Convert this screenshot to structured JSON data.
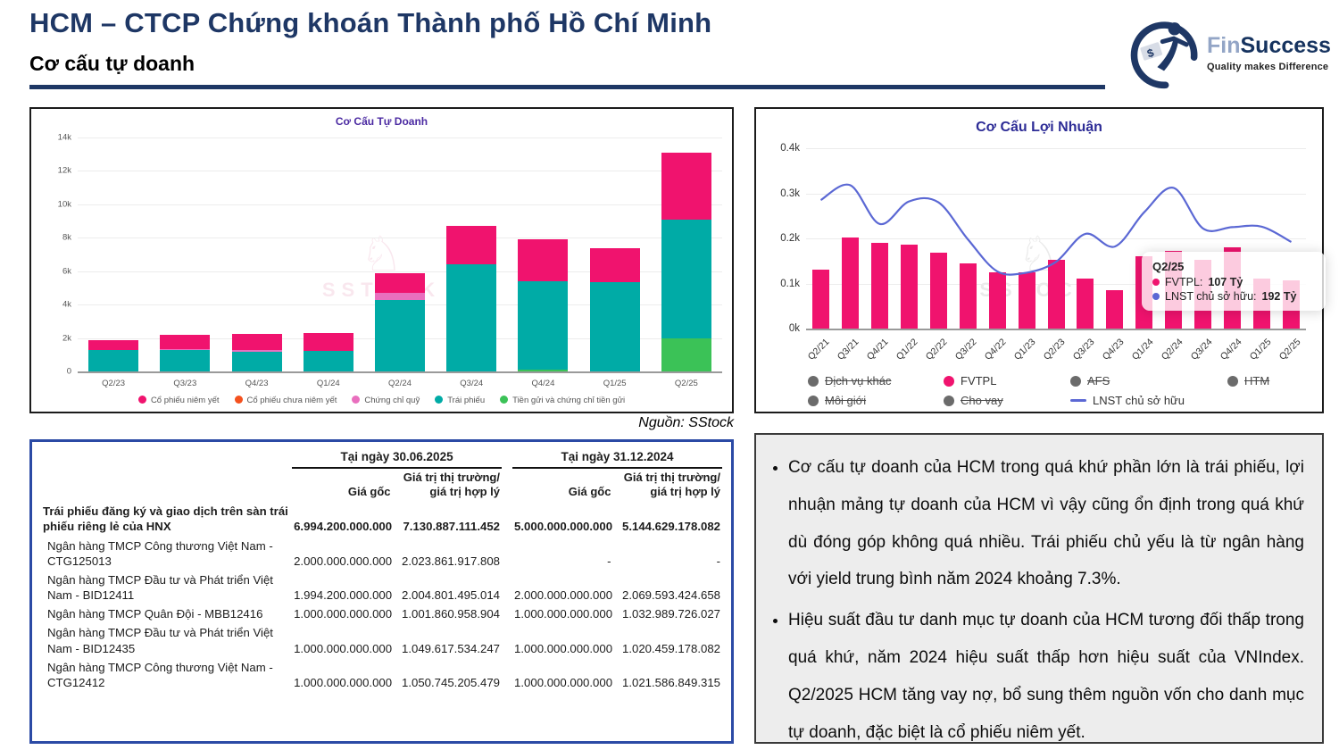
{
  "header": {
    "title": "HCM – CTCP Chứng khoán Thành phố Hồ Chí Minh",
    "subtitle": "Cơ cấu tự doanh"
  },
  "logo": {
    "name_light": "Fin",
    "name_dark": "Success",
    "tagline": "Quality makes Difference"
  },
  "source_caption": "Nguồn: SStock",
  "watermark_text": "SSTOCK",
  "colors": {
    "accent_navy": "#1E3765",
    "listed_pink": "#F0136E",
    "unlisted_orange": "#F4511E",
    "fund_pink": "#E96FBE",
    "bond_teal": "#00ABA6",
    "deposit_green": "#3BC257",
    "line_blue": "#5B68D4",
    "disabled_gray": "#6B6B6B"
  },
  "chart_data": [
    {
      "type": "bar",
      "stacked": true,
      "title": "Cơ Cấu Tự Doanh",
      "categories": [
        "Q2/23",
        "Q3/23",
        "Q4/23",
        "Q1/24",
        "Q2/24",
        "Q3/24",
        "Q4/24",
        "Q1/25",
        "Q2/25"
      ],
      "ylim": [
        0,
        14000
      ],
      "yticks": [
        {
          "v": 0,
          "label": "0"
        },
        {
          "v": 2000,
          "label": "2k"
        },
        {
          "v": 4000,
          "label": "4k"
        },
        {
          "v": 6000,
          "label": "6k"
        },
        {
          "v": 8000,
          "label": "8k"
        },
        {
          "v": 10000,
          "label": "10k"
        },
        {
          "v": 12000,
          "label": "12k"
        },
        {
          "v": 14000,
          "label": "14k"
        }
      ],
      "series": [
        {
          "name": "Tiền gửi và chứng chỉ tiền gửi",
          "color_key": "deposit_green",
          "values": [
            0,
            0,
            0,
            0,
            0,
            0,
            100,
            0,
            2000
          ]
        },
        {
          "name": "Trái phiếu",
          "color_key": "bond_teal",
          "values": [
            1300,
            1300,
            1200,
            1250,
            4300,
            6400,
            5300,
            5350,
            7100
          ]
        },
        {
          "name": "Chứng chỉ quỹ",
          "color_key": "fund_pink",
          "values": [
            0,
            60,
            100,
            0,
            380,
            0,
            0,
            0,
            0
          ]
        },
        {
          "name": "Cổ phiếu chưa niêm yết",
          "color_key": "unlisted_orange",
          "values": [
            0,
            0,
            0,
            0,
            0,
            0,
            0,
            0,
            0
          ]
        },
        {
          "name": "Cổ phiếu niêm yết",
          "color_key": "listed_pink",
          "values": [
            550,
            840,
            950,
            1050,
            1220,
            2300,
            2500,
            2050,
            4000
          ]
        }
      ],
      "legend": [
        {
          "label": "Cổ phiếu niêm yết",
          "color_key": "listed_pink"
        },
        {
          "label": "Cổ phiếu chưa niêm yết",
          "color_key": "unlisted_orange"
        },
        {
          "label": "Chứng chỉ quỹ",
          "color_key": "fund_pink"
        },
        {
          "label": "Trái phiếu",
          "color_key": "bond_teal"
        },
        {
          "label": "Tiền gửi và chứng chỉ tiền gửi",
          "color_key": "deposit_green"
        }
      ]
    },
    {
      "type": "bar+line",
      "title": "Cơ Cấu Lợi Nhuận",
      "categories": [
        "Q2/21",
        "Q3/21",
        "Q4/21",
        "Q1/22",
        "Q2/22",
        "Q3/22",
        "Q4/22",
        "Q1/23",
        "Q2/23",
        "Q3/23",
        "Q4/23",
        "Q1/24",
        "Q2/24",
        "Q3/24",
        "Q4/24",
        "Q1/25",
        "Q2/25"
      ],
      "ylim": [
        0,
        400
      ],
      "yticks": [
        {
          "v": 0,
          "label": "0k"
        },
        {
          "v": 100,
          "label": "0.1k"
        },
        {
          "v": 200,
          "label": "0.2k"
        },
        {
          "v": 300,
          "label": "0.3k"
        },
        {
          "v": 400,
          "label": "0.4k"
        }
      ],
      "bar_series": {
        "name": "FVTPL",
        "color_key": "listed_pink",
        "values": [
          130,
          202,
          190,
          187,
          168,
          145,
          125,
          124,
          153,
          110,
          85,
          160,
          172,
          152,
          180,
          110,
          107
        ]
      },
      "line_series": {
        "name": "LNST chủ sở hữu",
        "color_key": "line_blue",
        "values": [
          285,
          318,
          232,
          282,
          280,
          198,
          127,
          124,
          148,
          210,
          182,
          258,
          312,
          222,
          225,
          226,
          192
        ]
      },
      "tooltip": {
        "title": "Q2/25",
        "items": [
          {
            "label": "FVTPL",
            "value": "107 Tỷ",
            "color_key": "listed_pink"
          },
          {
            "label": "LNST chủ sở hữu",
            "value": "192 Tỷ",
            "color_key": "line_blue"
          }
        ]
      },
      "legend": [
        {
          "label": "Dịch vụ khác",
          "disabled": true,
          "marker": "dot"
        },
        {
          "label": "FVTPL",
          "disabled": false,
          "marker": "dot",
          "color_key": "listed_pink"
        },
        {
          "label": "AFS",
          "disabled": true,
          "marker": "dot"
        },
        {
          "label": "HTM",
          "disabled": true,
          "marker": "dot"
        },
        {
          "label": "Môi giới",
          "disabled": true,
          "marker": "dot"
        },
        {
          "label": "Cho vay",
          "disabled": true,
          "marker": "dot"
        },
        {
          "label": "LNST chủ sở hữu",
          "disabled": false,
          "marker": "line",
          "color_key": "line_blue"
        }
      ]
    }
  ],
  "table": {
    "group_headers": [
      "Tại ngày 30.06.2025",
      "Tại ngày 31.12.2024"
    ],
    "sub_headers": [
      "Giá gốc",
      "Giá trị thị trường/ giá trị hợp lý",
      "Giá gốc",
      "Giá trị thị trường/ giá trị hợp lý"
    ],
    "rows": [
      {
        "label": "Trái phiếu đăng ký và giao dịch trên sàn trái phiếu riêng lẻ của HNX",
        "bold": true,
        "indent": false,
        "values": [
          "6.994.200.000.000",
          "7.130.887.111.452",
          "5.000.000.000.000",
          "5.144.629.178.082"
        ]
      },
      {
        "label": "Ngân hàng TMCP Công thương Việt Nam - CTG125013",
        "bold": false,
        "indent": true,
        "values": [
          "2.000.000.000.000",
          "2.023.861.917.808",
          "-",
          "-"
        ]
      },
      {
        "label": "Ngân hàng TMCP Đầu tư và Phát triển Việt Nam - BID12411",
        "bold": false,
        "indent": true,
        "values": [
          "1.994.200.000.000",
          "2.004.801.495.014",
          "2.000.000.000.000",
          "2.069.593.424.658"
        ]
      },
      {
        "label": "Ngân hàng TMCP Quân Đội - MBB12416",
        "bold": false,
        "indent": true,
        "values": [
          "1.000.000.000.000",
          "1.001.860.958.904",
          "1.000.000.000.000",
          "1.032.989.726.027"
        ]
      },
      {
        "label": "Ngân hàng TMCP Đầu tư và Phát triển Việt Nam - BID12435",
        "bold": false,
        "indent": true,
        "values": [
          "1.000.000.000.000",
          "1.049.617.534.247",
          "1.000.000.000.000",
          "1.020.459.178.082"
        ]
      },
      {
        "label": "Ngân hàng TMCP Công thương Việt Nam - CTG12412",
        "bold": false,
        "indent": true,
        "values": [
          "1.000.000.000.000",
          "1.050.745.205.479",
          "1.000.000.000.000",
          "1.021.586.849.315"
        ]
      }
    ]
  },
  "notes": {
    "bullets": [
      "Cơ cấu tự doanh của HCM trong quá khứ phần lớn là trái phiếu, lợi nhuận mảng tự doanh của HCM vì vậy cũng ổn định trong quá khứ dù đóng góp không quá nhiều. Trái phiếu chủ yếu là từ ngân hàng với yield trung bình năm 2024 khoảng 7.3%.",
      "Hiệu suất đầu tư danh mục tự doanh của HCM tương đối thấp trong quá khứ, năm 2024 hiệu suất thấp hơn hiệu suất của VNIndex. Q2/2025 HCM tăng vay nợ, bổ sung thêm nguồn vốn cho danh mục tự doanh, đặc biệt là cổ phiếu niêm yết."
    ]
  }
}
